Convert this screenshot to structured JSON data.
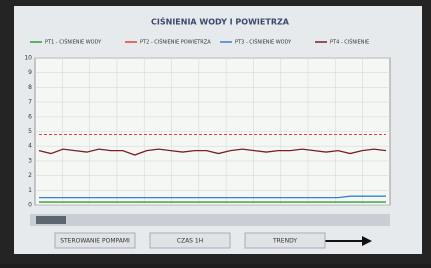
{
  "chart_data": {
    "type": "line",
    "title": "CIŚNIENIA WODY I POWIETRZA",
    "ylim": [
      0,
      10
    ],
    "yticks": [
      0,
      1,
      2,
      3,
      4,
      5,
      6,
      7,
      8,
      9,
      10
    ],
    "grid": true,
    "series": [
      {
        "name": "PT1 - CIŚNIENIE WODY",
        "color": "#2e9e3e",
        "values": [
          0.2,
          0.2,
          0.2,
          0.2,
          0.2,
          0.2,
          0.2,
          0.2,
          0.2,
          0.2,
          0.2,
          0.2,
          0.2,
          0.2,
          0.2,
          0.2,
          0.2,
          0.2,
          0.2,
          0.2,
          0.2,
          0.2,
          0.2,
          0.2,
          0.2,
          0.2,
          0.2,
          0.2,
          0.2,
          0.2
        ]
      },
      {
        "name": "PT2 - CIŚNIENIE POWIETRZA",
        "color": "#e04040",
        "values": [
          4.8,
          4.8,
          4.8,
          4.8,
          4.8,
          4.8,
          4.8,
          4.8,
          4.8,
          4.8,
          4.8,
          4.8,
          4.8,
          4.8,
          4.8,
          4.8,
          4.8,
          4.8,
          4.8,
          4.8,
          4.8,
          4.8,
          4.8,
          4.8,
          4.8,
          4.8,
          4.8,
          4.8,
          4.8,
          4.8
        ]
      },
      {
        "name": "PT3 - CIŚNIENIE WODY",
        "color": "#3a7fd0",
        "values": [
          0.5,
          0.5,
          0.5,
          0.5,
          0.5,
          0.5,
          0.5,
          0.5,
          0.5,
          0.5,
          0.5,
          0.5,
          0.5,
          0.5,
          0.5,
          0.5,
          0.5,
          0.5,
          0.5,
          0.5,
          0.5,
          0.5,
          0.5,
          0.5,
          0.5,
          0.5,
          0.6,
          0.6,
          0.6,
          0.6
        ]
      },
      {
        "name": "PT4 - CIŚNIENIE",
        "color": "#7a1f2a",
        "values": [
          3.7,
          3.5,
          3.8,
          3.7,
          3.6,
          3.8,
          3.7,
          3.7,
          3.4,
          3.7,
          3.8,
          3.7,
          3.6,
          3.7,
          3.7,
          3.5,
          3.7,
          3.8,
          3.7,
          3.6,
          3.7,
          3.7,
          3.8,
          3.7,
          3.6,
          3.7,
          3.5,
          3.7,
          3.8,
          3.7
        ]
      }
    ]
  },
  "ui": {
    "buttons": [
      "STEROWANIE POMPAMI",
      "CZAS 1H",
      "TRENDY"
    ]
  }
}
